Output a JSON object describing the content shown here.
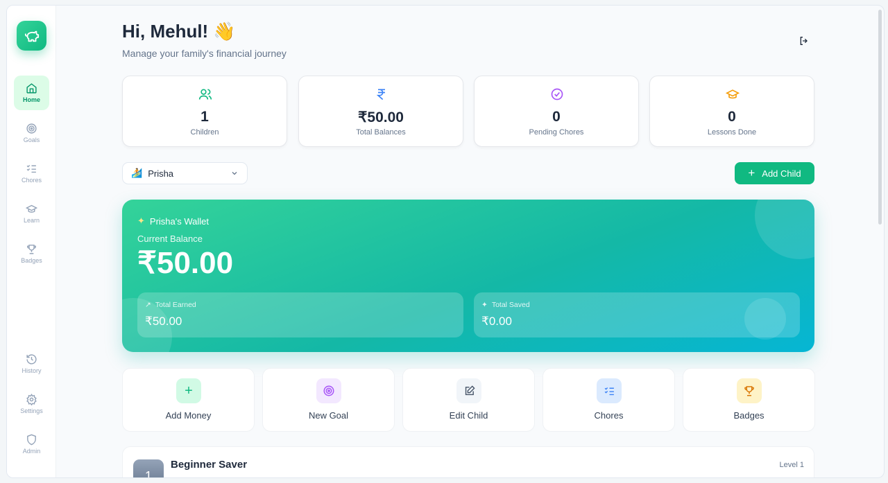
{
  "sidebar": {
    "items": [
      {
        "label": "Home",
        "icon": "home-icon"
      },
      {
        "label": "Goals",
        "icon": "target-icon"
      },
      {
        "label": "Chores",
        "icon": "list-check-icon"
      },
      {
        "label": "Learn",
        "icon": "graduation-cap-icon"
      },
      {
        "label": "Badges",
        "icon": "trophy-icon"
      },
      {
        "label": "History",
        "icon": "history-icon"
      },
      {
        "label": "Settings",
        "icon": "gear-icon"
      },
      {
        "label": "Admin",
        "icon": "shield-icon"
      }
    ]
  },
  "header": {
    "title": "Hi, Mehul! 👋",
    "subtitle": "Manage your family's financial journey"
  },
  "stats": [
    {
      "value": "1",
      "label": "Children",
      "color": "#10b981"
    },
    {
      "value": "₹50.00",
      "label": "Total Balances",
      "color": "#3b82f6"
    },
    {
      "value": "0",
      "label": "Pending Chores",
      "color": "#a855f7"
    },
    {
      "value": "0",
      "label": "Lessons Done",
      "color": "#f59e0b"
    }
  ],
  "child_select": {
    "value": "Prisha"
  },
  "add_child": "Add Child",
  "wallet": {
    "title": "Prisha's Wallet",
    "balance_label": "Current Balance",
    "balance": "₹50.00",
    "earned_label": "Total Earned",
    "earned": "₹50.00",
    "saved_label": "Total Saved",
    "saved": "₹0.00"
  },
  "actions": [
    {
      "label": "Add Money",
      "bg": "#d1fae5",
      "color": "#10b981"
    },
    {
      "label": "New Goal",
      "bg": "#f3e8ff",
      "color": "#a855f7"
    },
    {
      "label": "Edit Child",
      "bg": "#f1f5f9",
      "color": "#475569"
    },
    {
      "label": "Chores",
      "bg": "#dbeafe",
      "color": "#3b82f6"
    },
    {
      "label": "Badges",
      "bg": "#fef3c7",
      "color": "#d97706"
    }
  ],
  "level": {
    "number": "1",
    "title": "Beginner Saver",
    "label": "Level 1"
  }
}
